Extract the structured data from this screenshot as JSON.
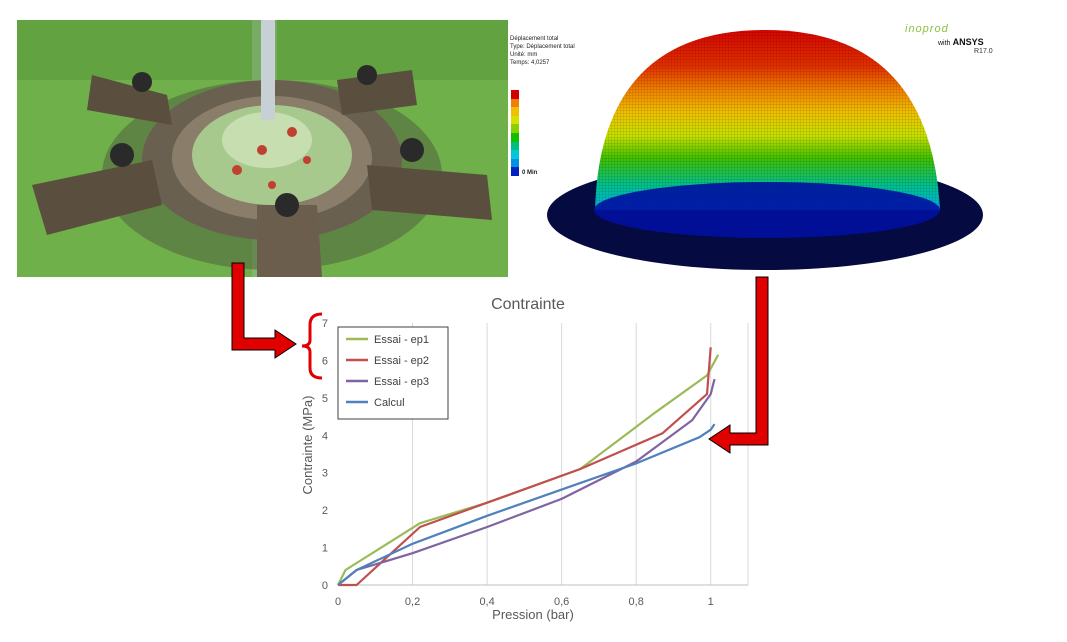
{
  "fea": {
    "legend_lines": [
      "Déplacement total",
      "Type: Déplacement total",
      "Unité: mm",
      "Temps: 4,0257"
    ],
    "min_label": "0 Min",
    "colorbar": [
      "#d40000",
      "#f08000",
      "#f0c000",
      "#d8e000",
      "#8ad000",
      "#10c000",
      "#00c080",
      "#00c8d8",
      "#0090e0",
      "#0020c0"
    ],
    "brand_name": "inoprod",
    "brand_with": "with",
    "brand_product": "ANSYS",
    "brand_version": "R17.0"
  },
  "chart_data": {
    "type": "line",
    "title": "Contrainte",
    "xlabel": "Pression (bar)",
    "ylabel": "Contrainte (MPa)",
    "xlim": [
      0,
      1.1
    ],
    "ylim": [
      0,
      7
    ],
    "xticks": [
      0,
      0.2,
      0.4,
      0.6,
      0.8,
      1
    ],
    "xtick_labels": [
      "0",
      "0,2",
      "0,4",
      "0,6",
      "0,8",
      "1"
    ],
    "yticks": [
      0,
      1,
      2,
      3,
      4,
      5,
      6,
      7
    ],
    "ytick_labels": [
      "0",
      "1",
      "2",
      "3",
      "4",
      "5",
      "6",
      "7"
    ],
    "grid": "vertical",
    "legend_position": "top-left",
    "series": [
      {
        "name": "Essai - ep1",
        "color": "#9bbb59",
        "x": [
          0,
          0.02,
          0.22,
          0.4,
          0.65,
          0.85,
          0.99,
          1.02
        ],
        "y": [
          0,
          0.4,
          1.65,
          2.2,
          3.1,
          4.6,
          5.6,
          6.15
        ]
      },
      {
        "name": "Essai - ep2",
        "color": "#c0504d",
        "x": [
          0,
          0.05,
          0.22,
          0.4,
          0.65,
          0.87,
          0.99,
          1.0
        ],
        "y": [
          0,
          0.0,
          1.55,
          2.2,
          3.1,
          4.05,
          5.1,
          6.35
        ]
      },
      {
        "name": "Essai - ep3",
        "color": "#8064a2",
        "x": [
          0,
          0.05,
          0.2,
          0.4,
          0.6,
          0.8,
          0.95,
          1.0,
          1.01
        ],
        "y": [
          0,
          0.4,
          0.85,
          1.55,
          2.3,
          3.3,
          4.4,
          5.1,
          5.5
        ]
      },
      {
        "name": "Calcul",
        "color": "#4f81bd",
        "x": [
          0,
          0.05,
          0.2,
          0.4,
          0.6,
          0.8,
          0.97,
          1.0,
          1.01
        ],
        "y": [
          0,
          0.4,
          1.1,
          1.85,
          2.55,
          3.25,
          3.95,
          4.15,
          4.3
        ]
      }
    ]
  }
}
